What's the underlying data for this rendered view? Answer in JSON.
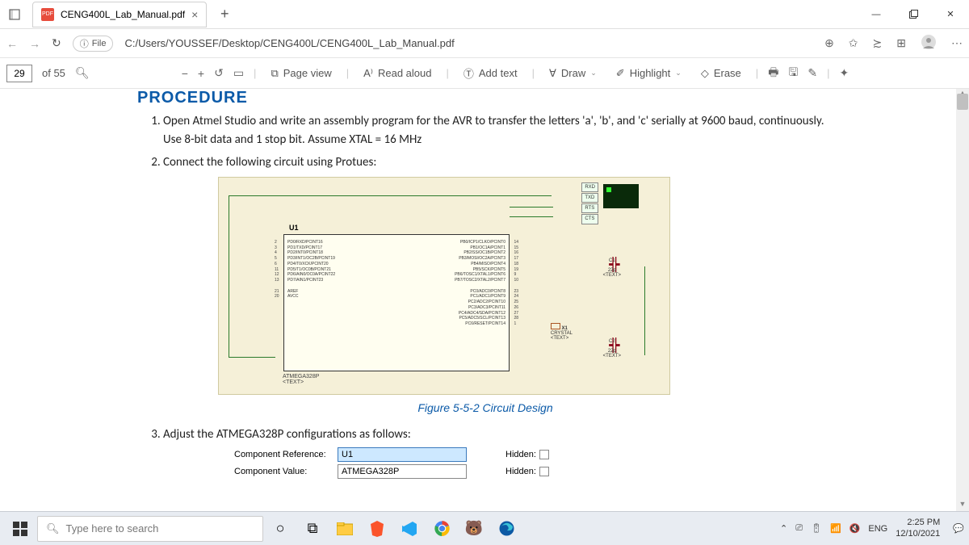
{
  "tab": {
    "title": "CENG400L_Lab_Manual.pdf"
  },
  "addr": {
    "file_label": "File",
    "path": "C:/Users/YOUSSEF/Desktop/CENG400L/CENG400L_Lab_Manual.pdf"
  },
  "toolbar": {
    "page": "29",
    "of": "of 55",
    "pageview": "Page view",
    "readaloud": "Read aloud",
    "addtext": "Add text",
    "draw": "Draw",
    "highlight": "Highlight",
    "erase": "Erase"
  },
  "doc": {
    "heading": "PROCEDURE",
    "step1": "Open Atmel Studio and write an assembly program for the AVR to transfer the letters 'a', 'b', and 'c' serially at 9600 baud, continuously. Use 8-bit data and 1 stop bit. Assume XTAL = 16 MHz",
    "step2": "Connect the following circuit using Protues:",
    "figcap": "Figure 5-5-2 Circuit Design",
    "step3": "Adjust the ATMEGA328P configurations as follows:"
  },
  "chip": {
    "ref": "U1",
    "name": "ATMEGA328P",
    "text": "<TEXT>",
    "left": [
      "PD0/RXD/PCINT16",
      "PD1/TXD/PCINT17",
      "PD2/INT0/PCINT18",
      "PD3/INT1/OC2B/PCINT19",
      "PD4/T0/XCK/PCINT20",
      "PD5/T1/OC0B/PCINT21",
      "PD6/AIN0/OC0A/PCINT22",
      "PD7/AIN1/PCINT23",
      "",
      "AREF",
      "AVCC"
    ],
    "right": [
      "PB0/ICP1/CLKO/PCINT0",
      "PB1/OC1A/PCINT1",
      "PB2/SS/OC1B/PCINT2",
      "PB3/MOSI/OC2A/PCINT3",
      "PB4/MISO/PCINT4",
      "PB5/SCK/PCINT5",
      "PB6/TOSC1/XTAL1/PCINT6",
      "PB7/TOSC2/XTAL2/PCINT7",
      "",
      "PC0/ADC0/PCINT8",
      "PC1/ADC1/PCINT9",
      "PC2/ADC2/PCINT10",
      "PC3/ADC3/PCINT11",
      "PC4/ADC4/SDA/PCINT12",
      "PC5/ADC5/SCL/PCINT13",
      "PC6/RESET/PCINT14"
    ],
    "lnum": [
      "2",
      "3",
      "4",
      "5",
      "6",
      "11",
      "12",
      "13",
      "",
      "21",
      "20"
    ],
    "rnum": [
      "14",
      "15",
      "16",
      "17",
      "18",
      "19",
      "9",
      "10",
      "",
      "23",
      "24",
      "25",
      "26",
      "27",
      "28",
      "1"
    ]
  },
  "term": {
    "rxd": "RXD",
    "txd": "TXD",
    "rts": "RTS",
    "cts": "CTS"
  },
  "c1": {
    "ref": "C1",
    "val": "22p",
    "text": "<TEXT>"
  },
  "c2": {
    "ref": "C2",
    "val": "22p",
    "text": "<TEXT>"
  },
  "x1": {
    "ref": "X1",
    "val": "CRYSTAL",
    "text": "<TEXT>"
  },
  "cfg": {
    "ref_lbl": "Component Reference:",
    "ref_v": "U1",
    "val_lbl": "Component Value:",
    "val_v": "ATMEGA328P",
    "hidden": "Hidden:"
  },
  "task": {
    "search": "Type here to search",
    "lang": "ENG",
    "time": "2:25 PM",
    "date": "12/10/2021"
  },
  "colors": {
    "heading": "#0b5aa8",
    "circuit_bg": "#f5f0d8",
    "wire": "#2a7a2a"
  }
}
